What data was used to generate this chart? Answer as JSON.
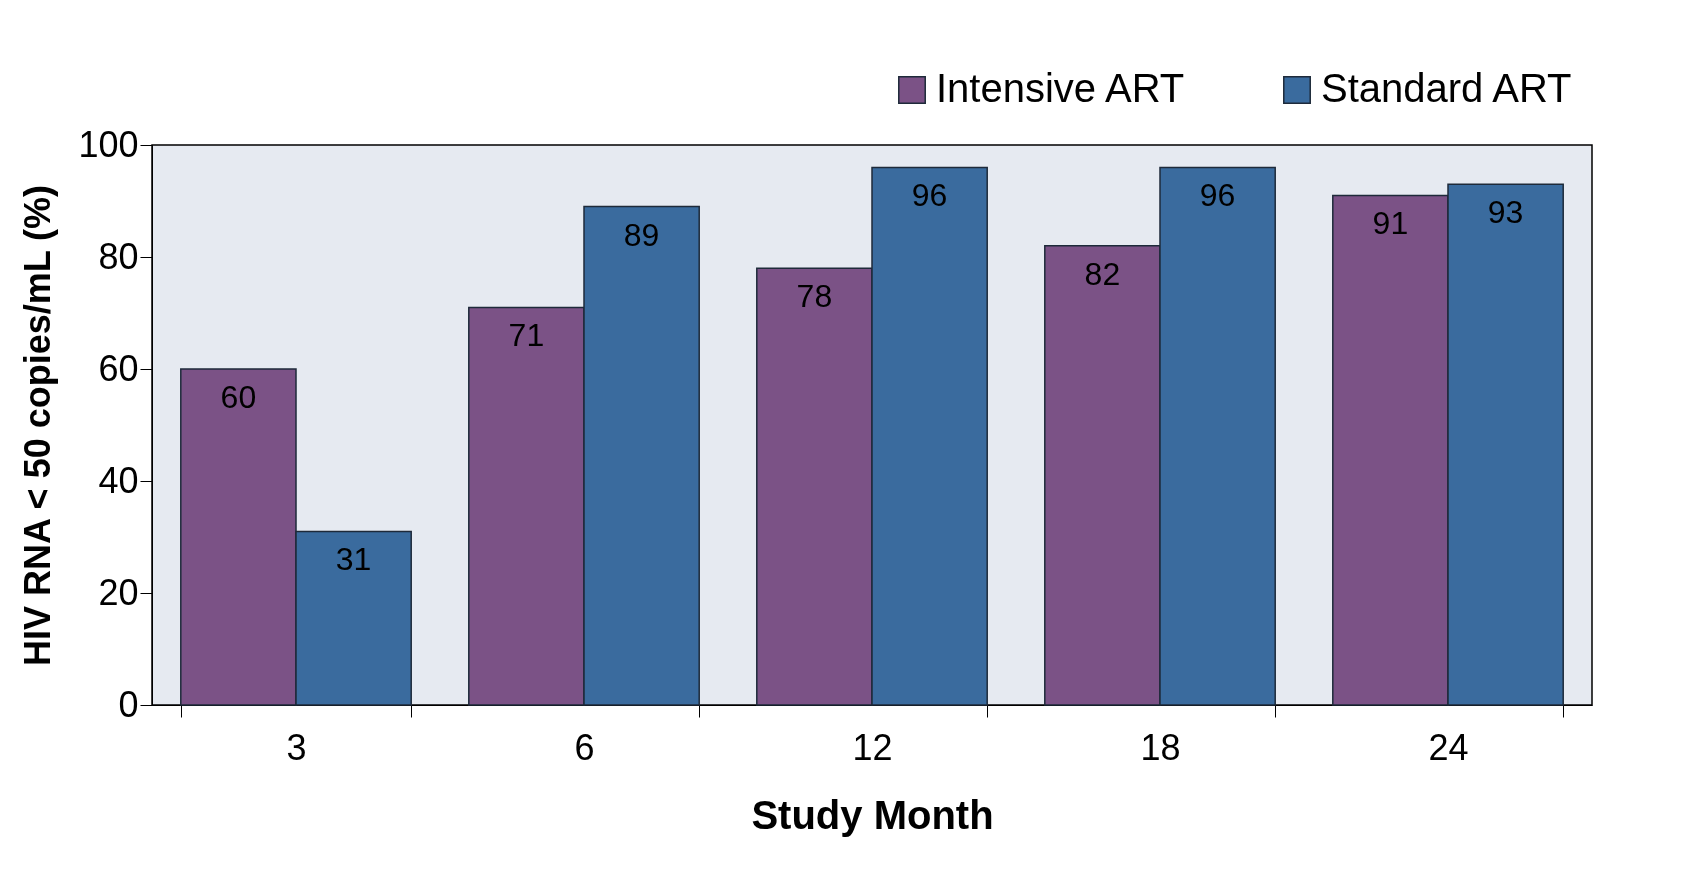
{
  "chart_data": {
    "type": "bar",
    "xlabel": "Study Month",
    "ylabel": "HIV RNA < 50 copies/mL (%)",
    "categories": [
      "3",
      "6",
      "12",
      "18",
      "24"
    ],
    "series": [
      {
        "name": "Intensive ART",
        "color": "#7b5286",
        "values": [
          60,
          71,
          78,
          82,
          91
        ]
      },
      {
        "name": "Standard ART",
        "color": "#3a6b9e",
        "values": [
          31,
          89,
          96,
          96,
          93
        ]
      }
    ],
    "ylim": [
      0,
      100
    ],
    "yticks": [
      0,
      20,
      40,
      60,
      80,
      100
    ],
    "grid": false,
    "legend": "top right",
    "data_labels": true
  }
}
